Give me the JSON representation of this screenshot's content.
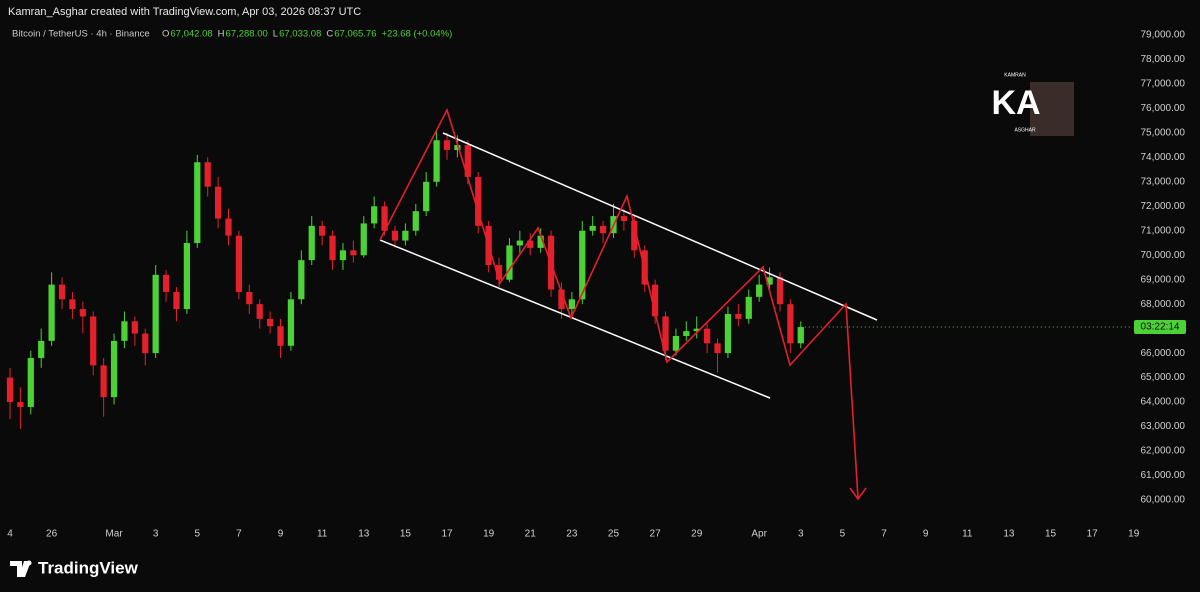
{
  "header": {
    "credit": "Kamran_Asghar created with TradingView.com, Apr 03, 2026 08:37 UTC"
  },
  "legend": {
    "symbol": "Bitcoin / TetherUS · 4h · Binance",
    "items": [
      {
        "label": "O",
        "value": "67,042.08"
      },
      {
        "label": "H",
        "value": "67,288.00"
      },
      {
        "label": "L",
        "value": "67,033.08"
      },
      {
        "label": "C",
        "value": "67,065.76"
      }
    ],
    "change": "+23.68 (+0.04%)"
  },
  "watermark": {
    "title": "KA",
    "top": "KAMRAN",
    "bottom": "ASGHAR"
  },
  "footer": {
    "brand": "TradingView"
  },
  "countdown": "03:22:14",
  "chart_data": {
    "type": "candlestick",
    "up_color": "#4cd137",
    "down_color": "#e3202b",
    "grid": false,
    "xlim": [
      -0.48,
      53.82
    ],
    "ylim": [
      59100,
      79530
    ],
    "xticks": [
      {
        "value": 0,
        "label": "4"
      },
      {
        "value": 2,
        "label": "26"
      },
      {
        "value": 5,
        "label": "Mar"
      },
      {
        "value": 7,
        "label": "3"
      },
      {
        "value": 9,
        "label": "5"
      },
      {
        "value": 11,
        "label": "7"
      },
      {
        "value": 13,
        "label": "9"
      },
      {
        "value": 15,
        "label": "11"
      },
      {
        "value": 17,
        "label": "13"
      },
      {
        "value": 19,
        "label": "15"
      },
      {
        "value": 21,
        "label": "17"
      },
      {
        "value": 23,
        "label": "19"
      },
      {
        "value": 25,
        "label": "21"
      },
      {
        "value": 27,
        "label": "23"
      },
      {
        "value": 29,
        "label": "25"
      },
      {
        "value": 31,
        "label": "27"
      },
      {
        "value": 33,
        "label": "29"
      },
      {
        "value": 36,
        "label": "Apr"
      },
      {
        "value": 38,
        "label": "3"
      },
      {
        "value": 40,
        "label": "5"
      },
      {
        "value": 42,
        "label": "7"
      },
      {
        "value": 44,
        "label": "9"
      },
      {
        "value": 46,
        "label": "11"
      },
      {
        "value": 48,
        "label": "13"
      },
      {
        "value": 50,
        "label": "15"
      },
      {
        "value": 52,
        "label": "17"
      },
      {
        "value": 54,
        "label": "19"
      }
    ],
    "yticks": [
      {
        "value": 79000,
        "label": "79,000.00"
      },
      {
        "value": 78000,
        "label": "78,000.00"
      },
      {
        "value": 77000,
        "label": "77,000.00"
      },
      {
        "value": 76000,
        "label": "76,000.00"
      },
      {
        "value": 75000,
        "label": "75,000.00"
      },
      {
        "value": 74000,
        "label": "74,000.00"
      },
      {
        "value": 73000,
        "label": "73,000.00"
      },
      {
        "value": 72000,
        "label": "72,000.00"
      },
      {
        "value": 71000,
        "label": "71,000.00"
      },
      {
        "value": 70000,
        "label": "70,000.00"
      },
      {
        "value": 69000,
        "label": "69,000.00"
      },
      {
        "value": 68000,
        "label": "68,000.00"
      },
      {
        "value": 67000,
        "label": "67,000.00"
      },
      {
        "value": 66000,
        "label": "66,000.00"
      },
      {
        "value": 65000,
        "label": "65,000.00"
      },
      {
        "value": 64000,
        "label": "64,000.00"
      },
      {
        "value": 63000,
        "label": "63,000.00"
      },
      {
        "value": 62000,
        "label": "62,000.00"
      },
      {
        "value": 61000,
        "label": "61,000.00"
      },
      {
        "value": 60000,
        "label": "60,000.00"
      }
    ],
    "x": [
      0,
      0.5,
      1,
      1.5,
      2,
      2.5,
      3,
      3.5,
      4,
      4.5,
      5,
      5.5,
      6,
      6.5,
      7,
      7.5,
      8,
      8.5,
      9,
      9.5,
      10,
      10.5,
      11,
      11.5,
      12,
      12.5,
      13,
      13.5,
      14,
      14.5,
      15,
      15.5,
      16,
      16.5,
      17,
      17.5,
      18,
      18.5,
      19,
      19.5,
      20,
      20.5,
      21,
      21.5,
      22,
      22.5,
      23,
      23.5,
      24,
      24.5,
      25,
      25.5,
      26,
      26.5,
      27,
      27.5,
      28,
      28.5,
      29,
      29.5,
      30,
      30.5,
      31,
      31.5,
      32,
      32.5,
      33,
      33.5,
      34,
      34.5,
      35,
      35.5,
      36,
      36.5,
      37,
      37.5,
      38
    ],
    "open": [
      65000,
      64000,
      63800,
      65800,
      66500,
      68800,
      68200,
      67800,
      67500,
      65500,
      64200,
      66500,
      67300,
      66800,
      66000,
      69200,
      68500,
      67800,
      70500,
      73800,
      72800,
      71500,
      70800,
      68500,
      68000,
      67400,
      67100,
      66300,
      68200,
      69800,
      71200,
      70800,
      69800,
      70200,
      70000,
      71300,
      72000,
      71000,
      70600,
      71000,
      71800,
      73000,
      74700,
      74300,
      74500,
      73200,
      71200,
      69600,
      69000,
      70400,
      70600,
      70300,
      70800,
      68600,
      67800,
      68200,
      71000,
      71200,
      70900,
      71600,
      71400,
      70200,
      68800,
      67500,
      66100,
      66700,
      66900,
      67000,
      66400,
      66000,
      67600,
      67400,
      68300,
      68800,
      69100,
      68000,
      66400
    ],
    "high": [
      65400,
      64600,
      66100,
      67000,
      69300,
      69100,
      68500,
      68100,
      67700,
      65800,
      66800,
      67700,
      67500,
      67000,
      69600,
      69400,
      68700,
      71000,
      74100,
      74000,
      73200,
      71900,
      71000,
      68800,
      68200,
      67700,
      67400,
      68500,
      70200,
      71600,
      71400,
      71000,
      70500,
      70600,
      71600,
      72400,
      72200,
      71200,
      71300,
      72100,
      73400,
      75100,
      75000,
      74900,
      74700,
      73400,
      71400,
      69900,
      70700,
      71000,
      70900,
      71100,
      71000,
      68900,
      68500,
      71400,
      71600,
      71400,
      72100,
      71900,
      71600,
      70400,
      69000,
      67700,
      67000,
      67300,
      67500,
      67200,
      66600,
      67900,
      68000,
      68600,
      69200,
      69500,
      69300,
      68200,
      67300
    ],
    "low": [
      63300,
      62900,
      63500,
      65400,
      66300,
      67800,
      67400,
      66800,
      65100,
      63400,
      63900,
      66200,
      66300,
      65500,
      65800,
      68100,
      67300,
      67600,
      70300,
      72400,
      71100,
      70400,
      68200,
      67600,
      67000,
      66800,
      65800,
      66100,
      68000,
      69600,
      70400,
      69400,
      69400,
      69700,
      69900,
      71100,
      70800,
      70300,
      70400,
      70800,
      71600,
      72800,
      73900,
      74000,
      72900,
      70900,
      69300,
      68700,
      68900,
      70100,
      70000,
      70100,
      68300,
      67400,
      67500,
      68000,
      70800,
      70500,
      70700,
      71000,
      69900,
      68500,
      67200,
      65700,
      65900,
      66500,
      66600,
      66000,
      65200,
      65800,
      67100,
      67200,
      68100,
      68600,
      67700,
      66000,
      66200
    ],
    "close": [
      64000,
      63800,
      65800,
      66500,
      68800,
      68200,
      67800,
      67500,
      65500,
      64200,
      66500,
      67300,
      66800,
      66000,
      69200,
      68500,
      67800,
      70500,
      73800,
      72800,
      71500,
      70800,
      68500,
      68000,
      67400,
      67100,
      66300,
      68200,
      69800,
      71200,
      70800,
      69800,
      70200,
      70000,
      71300,
      72000,
      71000,
      70600,
      71000,
      71800,
      73000,
      74700,
      74300,
      74500,
      73200,
      71200,
      69600,
      69000,
      70400,
      70600,
      70300,
      70800,
      68600,
      67800,
      68200,
      71000,
      71200,
      70900,
      71600,
      71400,
      70200,
      68800,
      67500,
      66100,
      66700,
      66900,
      67000,
      66400,
      66000,
      67600,
      67400,
      68300,
      68800,
      69100,
      68000,
      66400,
      67065.76
    ]
  }
}
